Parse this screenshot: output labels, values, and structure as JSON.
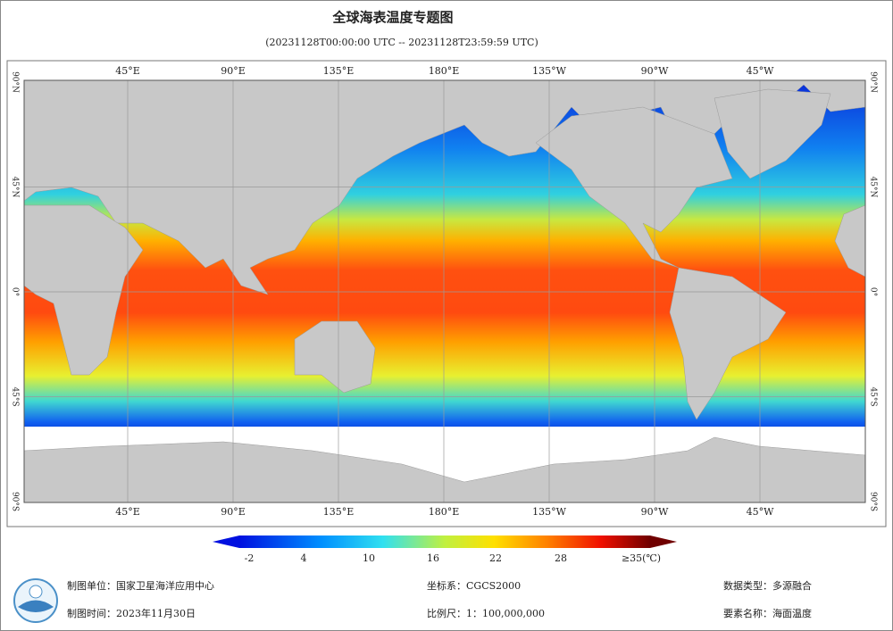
{
  "header": {
    "title": "全球海表温度专题图",
    "subtitle": "(20231128T00:00:00 UTC -- 20231128T23:59:59 UTC)"
  },
  "map": {
    "lon_labels": [
      "45°E",
      "90°E",
      "135°E",
      "180°E",
      "135°W",
      "90°W",
      "45°W"
    ],
    "lat_labels": [
      "90°N",
      "45°N",
      "0°",
      "45°S",
      "90°S"
    ]
  },
  "legend": {
    "labels": [
      "-2",
      "4",
      "10",
      "16",
      "22",
      "28",
      "≥35(℃)"
    ]
  },
  "footer": {
    "unit": "制图单位：国家卫星海洋应用中心",
    "date": "制图时间：2023年11月30日",
    "crs": "坐标系：CGCS2000",
    "scale": "比例尺：1：100,000,000",
    "data_type": "数据类型：多源融合",
    "element": "要素名称：海面温度"
  }
}
